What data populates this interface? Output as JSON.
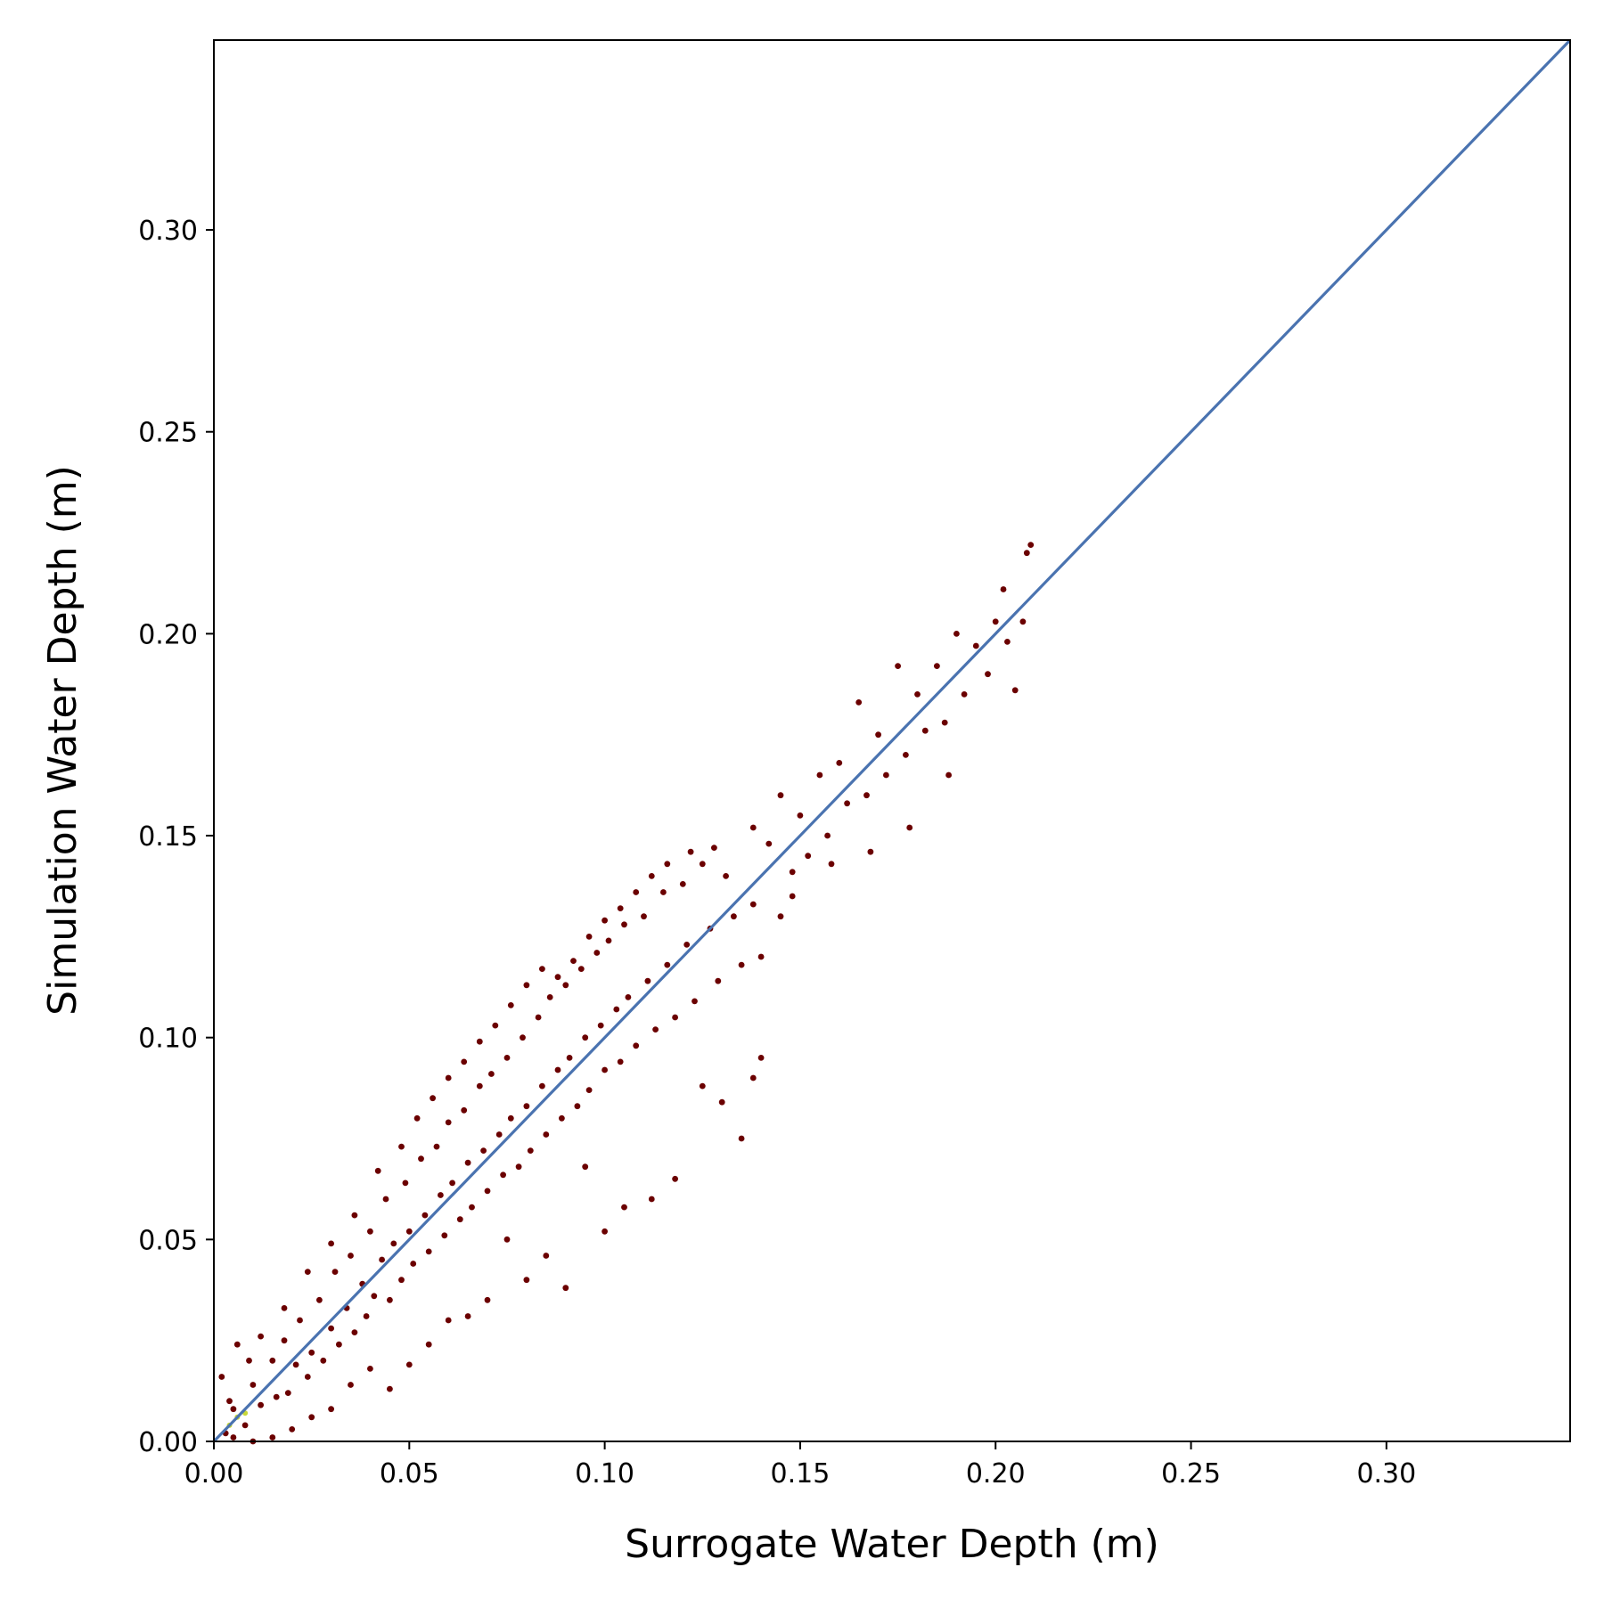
{
  "chart_data": {
    "type": "scatter",
    "title": "",
    "xlabel": "Surrogate Water Depth (m)",
    "ylabel": "Simulation Water Depth (m)",
    "xlim": [
      0.0,
      0.347
    ],
    "ylim": [
      0.0,
      0.347
    ],
    "xticks": [
      "0.00",
      "0.05",
      "0.10",
      "0.15",
      "0.20",
      "0.25",
      "0.30"
    ],
    "yticks": [
      "0.00",
      "0.05",
      "0.10",
      "0.15",
      "0.20",
      "0.25",
      "0.30"
    ],
    "xtick_values": [
      0.0,
      0.05,
      0.1,
      0.15,
      0.2,
      0.25,
      0.3
    ],
    "ytick_values": [
      0.0,
      0.05,
      0.1,
      0.15,
      0.2,
      0.25,
      0.3
    ],
    "grid": false,
    "legend": "none",
    "point_color": "#6b0000",
    "dense_core_color": "#c8d838",
    "line_color": "#4a73b0",
    "reference_line": {
      "label": "",
      "x": [
        0.0,
        0.347
      ],
      "y": [
        0.0,
        0.347
      ]
    },
    "points": [
      [
        0.003,
        0.002
      ],
      [
        0.005,
        0.008
      ],
      [
        0.008,
        0.004
      ],
      [
        0.01,
        0.014
      ],
      [
        0.012,
        0.009
      ],
      [
        0.015,
        0.02
      ],
      [
        0.016,
        0.011
      ],
      [
        0.018,
        0.025
      ],
      [
        0.019,
        0.012
      ],
      [
        0.021,
        0.019
      ],
      [
        0.022,
        0.03
      ],
      [
        0.024,
        0.016
      ],
      [
        0.025,
        0.022
      ],
      [
        0.027,
        0.035
      ],
      [
        0.028,
        0.02
      ],
      [
        0.03,
        0.028
      ],
      [
        0.031,
        0.042
      ],
      [
        0.032,
        0.024
      ],
      [
        0.034,
        0.033
      ],
      [
        0.035,
        0.046
      ],
      [
        0.036,
        0.027
      ],
      [
        0.038,
        0.039
      ],
      [
        0.039,
        0.031
      ],
      [
        0.04,
        0.052
      ],
      [
        0.041,
        0.036
      ],
      [
        0.043,
        0.045
      ],
      [
        0.044,
        0.06
      ],
      [
        0.045,
        0.035
      ],
      [
        0.046,
        0.049
      ],
      [
        0.048,
        0.04
      ],
      [
        0.049,
        0.064
      ],
      [
        0.05,
        0.052
      ],
      [
        0.051,
        0.044
      ],
      [
        0.053,
        0.07
      ],
      [
        0.054,
        0.056
      ],
      [
        0.055,
        0.047
      ],
      [
        0.057,
        0.073
      ],
      [
        0.058,
        0.061
      ],
      [
        0.059,
        0.051
      ],
      [
        0.06,
        0.079
      ],
      [
        0.061,
        0.064
      ],
      [
        0.063,
        0.055
      ],
      [
        0.064,
        0.082
      ],
      [
        0.065,
        0.069
      ],
      [
        0.066,
        0.058
      ],
      [
        0.068,
        0.088
      ],
      [
        0.069,
        0.072
      ],
      [
        0.07,
        0.062
      ],
      [
        0.071,
        0.091
      ],
      [
        0.073,
        0.076
      ],
      [
        0.074,
        0.066
      ],
      [
        0.075,
        0.095
      ],
      [
        0.076,
        0.08
      ],
      [
        0.078,
        0.068
      ],
      [
        0.079,
        0.1
      ],
      [
        0.08,
        0.083
      ],
      [
        0.081,
        0.072
      ],
      [
        0.083,
        0.105
      ],
      [
        0.084,
        0.088
      ],
      [
        0.085,
        0.076
      ],
      [
        0.086,
        0.11
      ],
      [
        0.088,
        0.092
      ],
      [
        0.089,
        0.08
      ],
      [
        0.09,
        0.113
      ],
      [
        0.091,
        0.095
      ],
      [
        0.093,
        0.083
      ],
      [
        0.094,
        0.117
      ],
      [
        0.095,
        0.1
      ],
      [
        0.096,
        0.087
      ],
      [
        0.098,
        0.121
      ],
      [
        0.099,
        0.103
      ],
      [
        0.1,
        0.092
      ],
      [
        0.101,
        0.124
      ],
      [
        0.103,
        0.107
      ],
      [
        0.104,
        0.094
      ],
      [
        0.105,
        0.128
      ],
      [
        0.106,
        0.11
      ],
      [
        0.108,
        0.098
      ],
      [
        0.11,
        0.13
      ],
      [
        0.111,
        0.114
      ],
      [
        0.113,
        0.102
      ],
      [
        0.115,
        0.136
      ],
      [
        0.116,
        0.118
      ],
      [
        0.118,
        0.105
      ],
      [
        0.12,
        0.138
      ],
      [
        0.121,
        0.123
      ],
      [
        0.123,
        0.109
      ],
      [
        0.125,
        0.143
      ],
      [
        0.127,
        0.127
      ],
      [
        0.129,
        0.114
      ],
      [
        0.131,
        0.14
      ],
      [
        0.133,
        0.13
      ],
      [
        0.135,
        0.118
      ],
      [
        0.138,
        0.133
      ],
      [
        0.14,
        0.12
      ],
      [
        0.142,
        0.148
      ],
      [
        0.145,
        0.13
      ],
      [
        0.148,
        0.141
      ],
      [
        0.15,
        0.155
      ],
      [
        0.152,
        0.145
      ],
      [
        0.155,
        0.165
      ],
      [
        0.157,
        0.15
      ],
      [
        0.16,
        0.168
      ],
      [
        0.162,
        0.158
      ],
      [
        0.165,
        0.183
      ],
      [
        0.167,
        0.16
      ],
      [
        0.17,
        0.175
      ],
      [
        0.172,
        0.165
      ],
      [
        0.175,
        0.192
      ],
      [
        0.177,
        0.17
      ],
      [
        0.18,
        0.185
      ],
      [
        0.182,
        0.176
      ],
      [
        0.185,
        0.192
      ],
      [
        0.187,
        0.178
      ],
      [
        0.19,
        0.2
      ],
      [
        0.192,
        0.185
      ],
      [
        0.195,
        0.197
      ],
      [
        0.198,
        0.19
      ],
      [
        0.2,
        0.203
      ],
      [
        0.203,
        0.198
      ],
      [
        0.207,
        0.203
      ],
      [
        0.209,
        0.222
      ],
      [
        0.208,
        0.22
      ],
      [
        0.205,
        0.186
      ],
      [
        0.202,
        0.211
      ],
      [
        0.188,
        0.165
      ],
      [
        0.178,
        0.152
      ],
      [
        0.168,
        0.146
      ],
      [
        0.158,
        0.143
      ],
      [
        0.148,
        0.135
      ],
      [
        0.14,
        0.095
      ],
      [
        0.138,
        0.09
      ],
      [
        0.135,
        0.075
      ],
      [
        0.13,
        0.084
      ],
      [
        0.125,
        0.088
      ],
      [
        0.118,
        0.065
      ],
      [
        0.112,
        0.06
      ],
      [
        0.105,
        0.058
      ],
      [
        0.1,
        0.052
      ],
      [
        0.095,
        0.068
      ],
      [
        0.09,
        0.038
      ],
      [
        0.085,
        0.046
      ],
      [
        0.08,
        0.04
      ],
      [
        0.075,
        0.05
      ],
      [
        0.07,
        0.035
      ],
      [
        0.065,
        0.031
      ],
      [
        0.06,
        0.03
      ],
      [
        0.055,
        0.024
      ],
      [
        0.05,
        0.019
      ],
      [
        0.045,
        0.013
      ],
      [
        0.04,
        0.018
      ],
      [
        0.035,
        0.014
      ],
      [
        0.03,
        0.008
      ],
      [
        0.025,
        0.006
      ],
      [
        0.02,
        0.003
      ],
      [
        0.015,
        0.001
      ],
      [
        0.01,
        0.0
      ],
      [
        0.005,
        0.001
      ],
      [
        0.002,
        0.016
      ],
      [
        0.004,
        0.01
      ],
      [
        0.006,
        0.024
      ],
      [
        0.009,
        0.02
      ],
      [
        0.012,
        0.026
      ],
      [
        0.018,
        0.033
      ],
      [
        0.024,
        0.042
      ],
      [
        0.03,
        0.049
      ],
      [
        0.036,
        0.056
      ],
      [
        0.042,
        0.067
      ],
      [
        0.048,
        0.073
      ],
      [
        0.052,
        0.08
      ],
      [
        0.056,
        0.085
      ],
      [
        0.06,
        0.09
      ],
      [
        0.064,
        0.094
      ],
      [
        0.068,
        0.099
      ],
      [
        0.072,
        0.103
      ],
      [
        0.076,
        0.108
      ],
      [
        0.08,
        0.113
      ],
      [
        0.084,
        0.117
      ],
      [
        0.088,
        0.115
      ],
      [
        0.092,
        0.119
      ],
      [
        0.096,
        0.125
      ],
      [
        0.1,
        0.129
      ],
      [
        0.104,
        0.132
      ],
      [
        0.108,
        0.136
      ],
      [
        0.112,
        0.14
      ],
      [
        0.116,
        0.143
      ],
      [
        0.122,
        0.146
      ],
      [
        0.128,
        0.147
      ],
      [
        0.138,
        0.152
      ],
      [
        0.145,
        0.16
      ]
    ]
  }
}
